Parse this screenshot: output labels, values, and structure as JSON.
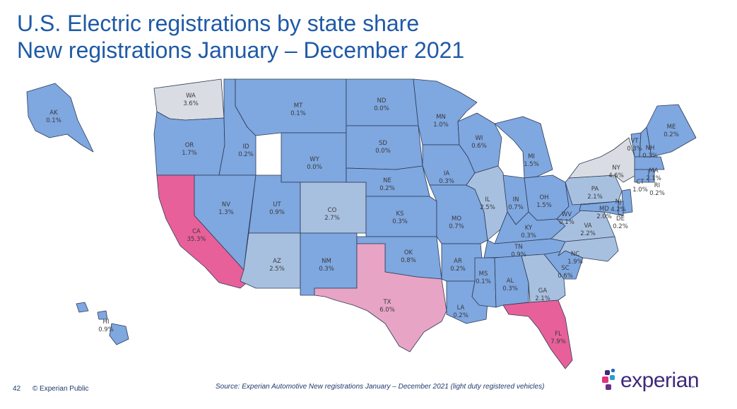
{
  "title_line1": "U.S. Electric registrations by state share",
  "title_line2": "New registrations January – December 2021",
  "footer": {
    "page_number": "42",
    "copyright": "© Experian Public",
    "source": "Source: Experian Automotive New registrations January – December 2021  (light duty registered vehicles)"
  },
  "logo": {
    "text": "experian",
    "tm": "™"
  },
  "colors": {
    "low": "#7fa7e0",
    "mid_low": "#a8c0e0",
    "mid": "#d9dde3",
    "tx": "#e8a4c4",
    "high": "#e8609a",
    "title": "#1f5aa6",
    "border": "#2b3a55"
  },
  "states": [
    {
      "abbr": "WA",
      "share": "3.6%",
      "tier": "mid"
    },
    {
      "abbr": "OR",
      "share": "1.7%",
      "tier": "low"
    },
    {
      "abbr": "CA",
      "share": "35.3%",
      "tier": "high"
    },
    {
      "abbr": "ID",
      "share": "0.2%",
      "tier": "low"
    },
    {
      "abbr": "NV",
      "share": "1.3%",
      "tier": "low"
    },
    {
      "abbr": "MT",
      "share": "0.1%",
      "tier": "low"
    },
    {
      "abbr": "WY",
      "share": "0.0%",
      "tier": "low"
    },
    {
      "abbr": "UT",
      "share": "0.9%",
      "tier": "low"
    },
    {
      "abbr": "CO",
      "share": "2.7%",
      "tier": "mid_low"
    },
    {
      "abbr": "AZ",
      "share": "2.5%",
      "tier": "mid_low"
    },
    {
      "abbr": "NM",
      "share": "0.3%",
      "tier": "low"
    },
    {
      "abbr": "ND",
      "share": "0.0%",
      "tier": "low"
    },
    {
      "abbr": "SD",
      "share": "0.0%",
      "tier": "low"
    },
    {
      "abbr": "NE",
      "share": "0.2%",
      "tier": "low"
    },
    {
      "abbr": "KS",
      "share": "0.3%",
      "tier": "low"
    },
    {
      "abbr": "OK",
      "share": "0.8%",
      "tier": "low"
    },
    {
      "abbr": "TX",
      "share": "6.0%",
      "tier": "tx"
    },
    {
      "abbr": "MN",
      "share": "1.0%",
      "tier": "low"
    },
    {
      "abbr": "IA",
      "share": "0.3%",
      "tier": "low"
    },
    {
      "abbr": "MO",
      "share": "0.7%",
      "tier": "low"
    },
    {
      "abbr": "AR",
      "share": "0.2%",
      "tier": "low"
    },
    {
      "abbr": "LA",
      "share": "0.2%",
      "tier": "low"
    },
    {
      "abbr": "WI",
      "share": "0.6%",
      "tier": "low"
    },
    {
      "abbr": "IL",
      "share": "2.5%",
      "tier": "mid_low"
    },
    {
      "abbr": "MI",
      "share": "1.5%",
      "tier": "low"
    },
    {
      "abbr": "IN",
      "share": "0.7%",
      "tier": "low"
    },
    {
      "abbr": "OH",
      "share": "1.5%",
      "tier": "low"
    },
    {
      "abbr": "KY",
      "share": "0.3%",
      "tier": "low"
    },
    {
      "abbr": "TN",
      "share": "0.9%",
      "tier": "low"
    },
    {
      "abbr": "MS",
      "share": "0.1%",
      "tier": "low"
    },
    {
      "abbr": "AL",
      "share": "0.3%",
      "tier": "low"
    },
    {
      "abbr": "GA",
      "share": "2.1%",
      "tier": "mid_low"
    },
    {
      "abbr": "FL",
      "share": "7.9%",
      "tier": "high"
    },
    {
      "abbr": "SC",
      "share": "0.6%",
      "tier": "low"
    },
    {
      "abbr": "NC",
      "share": "1.9%",
      "tier": "mid_low"
    },
    {
      "abbr": "VA",
      "share": "2.2%",
      "tier": "mid_low"
    },
    {
      "abbr": "WV",
      "share": "0.1%",
      "tier": "low"
    },
    {
      "abbr": "PA",
      "share": "2.1%",
      "tier": "mid_low"
    },
    {
      "abbr": "NY",
      "share": "4.6%",
      "tier": "mid"
    },
    {
      "abbr": "VT",
      "share": "0.3%",
      "tier": "low"
    },
    {
      "abbr": "NH",
      "share": "0.3%",
      "tier": "low"
    },
    {
      "abbr": "ME",
      "share": "0.2%",
      "tier": "low"
    },
    {
      "abbr": "MA",
      "share": "2.1%",
      "tier": "low"
    },
    {
      "abbr": "CT",
      "share": "1.0%",
      "tier": "low"
    },
    {
      "abbr": "RI",
      "share": "0.2%",
      "tier": "low"
    },
    {
      "abbr": "NJ",
      "share": "4.2%",
      "tier": "low"
    },
    {
      "abbr": "MD",
      "share": "2.0%",
      "tier": "low"
    },
    {
      "abbr": "DE",
      "share": "0.2%",
      "tier": "low"
    },
    {
      "abbr": "AK",
      "share": "0.1%",
      "tier": "low"
    },
    {
      "abbr": "HI",
      "share": "0.9%",
      "tier": "low"
    }
  ]
}
